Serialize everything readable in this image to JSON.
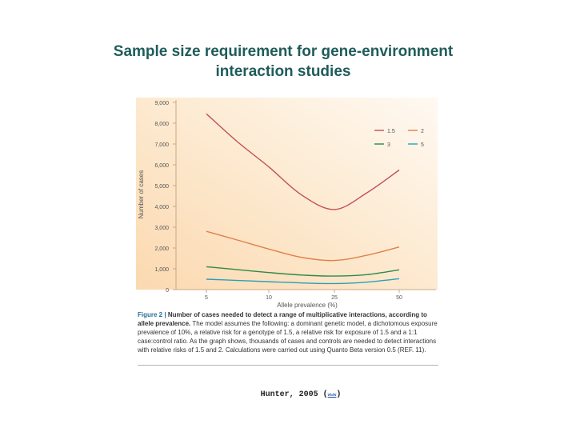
{
  "slide": {
    "title_line1": "Sample size requirement for gene-environment",
    "title_line2": "interaction studies"
  },
  "figure": {
    "caption_label": "Figure 2 |",
    "caption_title": "Number of cases needed to detect a range of multiplicative interactions, according to allele prevalence.",
    "caption_body": "The model assumes the following: a dominant genetic model, a dichotomous exposure prevalence of 10%, a relative risk for a genotype of 1.5, a relative risk for exposure of 1.5 and a 1:1 case:control ratio. As the graph shows, thousands of cases and controls are needed to detect interactions with relative risks of 1.5 and 2. Calculations were carried out using Quanto Beta version 0.5 (REF. 11)."
  },
  "source": {
    "citation": "Hunter, 2005",
    "link_text": "www"
  },
  "chart_data": {
    "type": "line",
    "title": "",
    "xlabel": "Allele prevalence (%)",
    "ylabel": "Number of cases",
    "categories": [
      "5",
      "10",
      "25",
      "50"
    ],
    "x_ticks": [
      "5",
      "10",
      "25",
      "50"
    ],
    "y_ticks": [
      "0",
      "1,000",
      "2,000",
      "3,000",
      "4,000",
      "5,000",
      "6,000",
      "7,000",
      "8,000",
      "9,000"
    ],
    "ylim": [
      0,
      9000
    ],
    "grid": false,
    "legend_position": "top-right",
    "series": [
      {
        "name": "1.5",
        "color": "#c0505a",
        "x": [
          5,
          7.5,
          10,
          17.5,
          25,
          37.5,
          50
        ],
        "y": [
          8450,
          7100,
          5900,
          4550,
          3850,
          4650,
          5750
        ]
      },
      {
        "name": "2",
        "color": "#e0804a",
        "x": [
          5,
          7.5,
          10,
          17.5,
          25,
          37.5,
          50
        ],
        "y": [
          2800,
          2380,
          1950,
          1550,
          1400,
          1650,
          2050
        ]
      },
      {
        "name": "3",
        "color": "#2e8a4a",
        "x": [
          5,
          7.5,
          10,
          17.5,
          25,
          37.5,
          50
        ],
        "y": [
          1100,
          960,
          820,
          700,
          650,
          720,
          950
        ]
      },
      {
        "name": "5",
        "color": "#2aa0b8",
        "x": [
          5,
          7.5,
          10,
          17.5,
          25,
          37.5,
          50
        ],
        "y": [
          500,
          440,
          380,
          320,
          290,
          360,
          520
        ]
      }
    ]
  }
}
